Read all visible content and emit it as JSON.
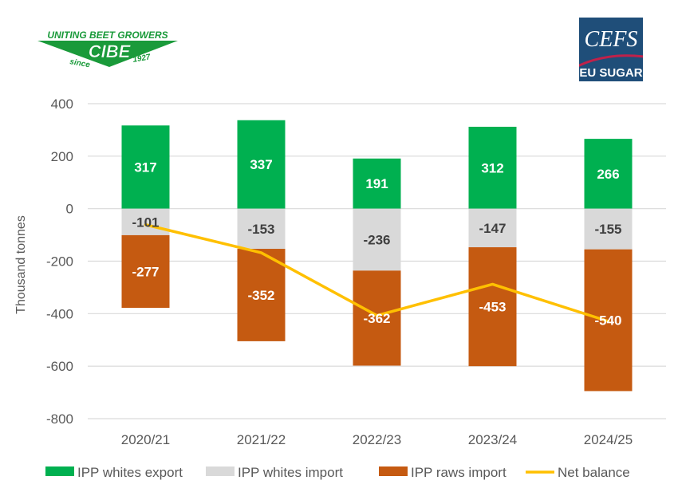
{
  "logos": {
    "left": {
      "top_text": "UNITING BEET GROWERS",
      "main": "CIBE",
      "since": "since",
      "year": "1927",
      "color": "#1a9a3a"
    },
    "right": {
      "main": "CEFS",
      "sub": "EU SUGAR",
      "bg": "#1f4e79",
      "swoosh": "#c0214a"
    }
  },
  "chart_data": {
    "type": "bar",
    "stacked": true,
    "title": "",
    "xlabel": "",
    "ylabel": "Thousand tonnes",
    "categories": [
      "2020/21",
      "2021/22",
      "2022/23",
      "2023/24",
      "2024/25"
    ],
    "ylim": [
      -800,
      400
    ],
    "yticks": [
      400,
      200,
      0,
      -200,
      -400,
      -600,
      -800
    ],
    "grid": true,
    "legend_position": "bottom",
    "series": [
      {
        "name": "IPP whites export",
        "type": "bar",
        "color": "#00b050",
        "label_color": "#ffffff",
        "values": [
          317,
          337,
          191,
          312,
          266
        ]
      },
      {
        "name": "IPP whites import",
        "type": "bar",
        "color": "#d9d9d9",
        "label_color": "#404040",
        "values": [
          -101,
          -153,
          -236,
          -147,
          -155
        ]
      },
      {
        "name": "IPP raws import",
        "type": "bar",
        "color": "#c55a11",
        "label_color": "#ffffff",
        "values": [
          -277,
          -352,
          -362,
          -453,
          -540
        ]
      },
      {
        "name": "Net balance",
        "type": "line",
        "color": "#ffc000",
        "values": [
          -61,
          -168,
          -407,
          -288,
          -429
        ]
      }
    ]
  }
}
